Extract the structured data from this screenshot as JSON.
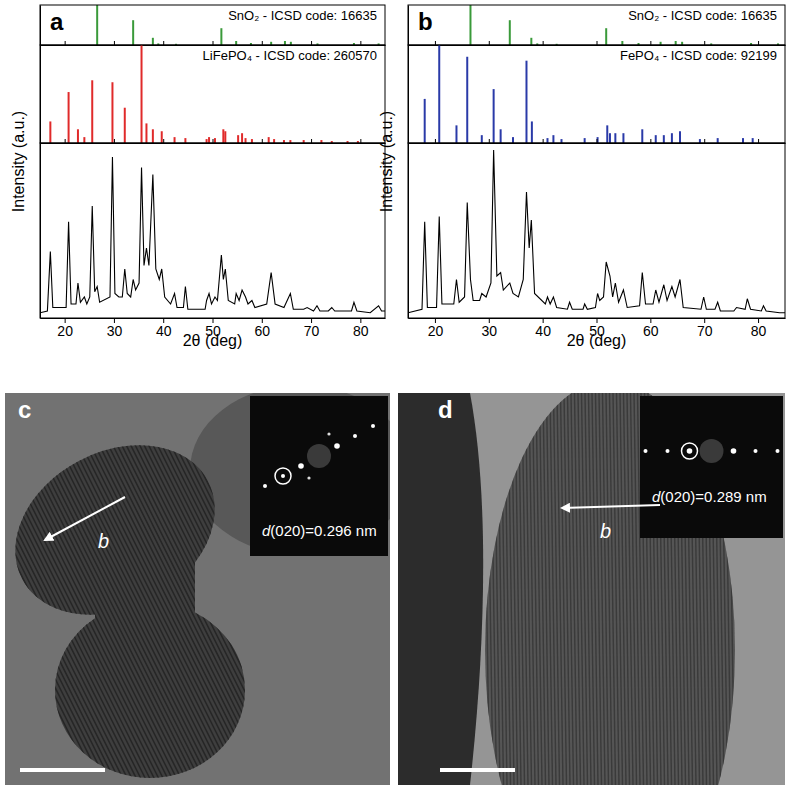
{
  "chart_data": [
    {
      "type": "stem",
      "panel": "a",
      "title": "SnO₂ - ICSD code: 16635",
      "color": "#3a9a3a",
      "x": [
        26.6,
        33.9,
        37.9,
        39.0,
        42.6,
        51.8,
        54.8,
        57.8,
        61.9,
        64.7,
        65.9,
        71.3,
        78.7,
        83.7
      ],
      "values": [
        100,
        62,
        18,
        4,
        3,
        42,
        10,
        5,
        8,
        10,
        8,
        4,
        5,
        4
      ],
      "xlim": [
        15,
        85
      ],
      "ylim": [
        0,
        100
      ],
      "xticks": [
        20,
        30,
        40,
        50,
        60,
        70,
        80
      ],
      "yticks": [],
      "tick_labels": false
    },
    {
      "type": "stem",
      "title": "LiFePO₄ - ICSD code: 260570",
      "color": "#e02a2a",
      "x": [
        17.1,
        20.8,
        22.7,
        24.0,
        25.6,
        29.7,
        32.2,
        35.6,
        36.6,
        37.9,
        39.7,
        42.3,
        44.5,
        48.8,
        49.3,
        50.5,
        52.2,
        52.6,
        55.2,
        56.0,
        56.7,
        58.0,
        61.4,
        62.5,
        64.5,
        65.8,
        68.5,
        72.1,
        74.2,
        77.4,
        79.5
      ],
      "values": [
        22,
        52,
        14,
        6,
        64,
        62,
        36,
        100,
        20,
        14,
        12,
        6,
        5,
        4,
        6,
        5,
        14,
        12,
        8,
        10,
        5,
        4,
        6,
        4,
        3,
        3,
        3,
        3,
        2,
        2,
        2
      ],
      "xlim": [
        15,
        85
      ],
      "ylim": [
        0,
        100
      ],
      "xticks": [
        20,
        30,
        40,
        50,
        60,
        70,
        80
      ],
      "yticks": [],
      "tick_labels": false
    },
    {
      "type": "line",
      "x_label": "2θ (deg)",
      "y_label": "Intensity (a.u.)",
      "color": "#000000",
      "x": [
        15,
        16.5,
        17.1,
        17.6,
        20.3,
        20.8,
        21.3,
        22.3,
        22.7,
        23.2,
        24.0,
        24.5,
        25.1,
        25.6,
        26.1,
        26.6,
        27.1,
        29.2,
        29.7,
        30.2,
        31.0,
        31.7,
        32.2,
        32.7,
        33.4,
        33.9,
        34.4,
        35.1,
        35.6,
        36.1,
        36.6,
        37.1,
        37.9,
        38.5,
        39.2,
        39.7,
        40.3,
        41.5,
        42.3,
        42.8,
        44.1,
        44.5,
        45.0,
        48.5,
        48.8,
        49.3,
        49.8,
        50.5,
        51.0,
        51.8,
        52.2,
        52.6,
        53.2,
        54.5,
        54.8,
        55.4,
        56.0,
        56.7,
        57.2,
        58.0,
        58.6,
        61.0,
        61.9,
        62.7,
        64.5,
        65.8,
        66.4,
        68.5,
        69.2,
        70.5,
        71.2,
        71.8,
        73.5,
        74.2,
        74.8,
        78.2,
        78.7,
        79.3,
        82.0,
        83.7,
        84.3,
        85
      ],
      "values": [
        3,
        4,
        38,
        6,
        6,
        55,
        8,
        8,
        20,
        9,
        12,
        8,
        12,
        64,
        15,
        18,
        9,
        12,
        92,
        14,
        12,
        12,
        28,
        14,
        12,
        22,
        16,
        20,
        86,
        30,
        40,
        30,
        82,
        28,
        22,
        28,
        12,
        8,
        14,
        6,
        6,
        18,
        5,
        5,
        10,
        14,
        8,
        12,
        10,
        36,
        22,
        28,
        10,
        8,
        14,
        10,
        16,
        12,
        8,
        10,
        6,
        8,
        26,
        8,
        6,
        14,
        5,
        5,
        6,
        4,
        7,
        4,
        4,
        6,
        4,
        4,
        9,
        4,
        3,
        7,
        4,
        4
      ],
      "xlim": [
        15,
        85
      ],
      "ylim": [
        0,
        100
      ],
      "xticks": [
        20,
        30,
        40,
        50,
        60,
        70,
        80
      ],
      "yticks": [],
      "tick_labels": "x"
    },
    {
      "type": "stem",
      "panel": "b",
      "title": "SnO₂ - ICSD code: 16635",
      "color": "#3a9a3a",
      "x": [
        26.6,
        33.9,
        37.9,
        39.0,
        42.6,
        51.8,
        54.8,
        57.8,
        61.9,
        64.7,
        65.9,
        71.3,
        78.7,
        83.7
      ],
      "values": [
        100,
        62,
        18,
        4,
        3,
        42,
        10,
        5,
        8,
        10,
        8,
        4,
        5,
        4
      ],
      "xlim": [
        15,
        85
      ],
      "ylim": [
        0,
        100
      ],
      "xticks": [
        20,
        30,
        40,
        50,
        60,
        70,
        80
      ],
      "yticks": [],
      "tick_labels": false
    },
    {
      "type": "stem",
      "title": "FePO₄ - ICSD code: 92199",
      "color": "#2a3aa8",
      "x": [
        18.1,
        20.8,
        24.0,
        26.0,
        28.7,
        30.9,
        32.2,
        34.5,
        37.0,
        38.0,
        40.9,
        42.0,
        43.5,
        47.8,
        50.2,
        52.0,
        52.5,
        53.5,
        55.0,
        58.5,
        61.0,
        62.5,
        64.0,
        65.5,
        69.2,
        72.5,
        77.2,
        79.0
      ],
      "values": [
        45,
        100,
        18,
        88,
        8,
        55,
        14,
        6,
        84,
        22,
        5,
        8,
        4,
        5,
        6,
        18,
        10,
        10,
        10,
        14,
        8,
        8,
        10,
        12,
        4,
        5,
        5,
        5
      ],
      "xlim": [
        15,
        85
      ],
      "ylim": [
        0,
        100
      ],
      "xticks": [
        20,
        30,
        40,
        50,
        60,
        70,
        80
      ],
      "yticks": [],
      "tick_labels": false
    },
    {
      "type": "line",
      "x_label": "2θ (deg)",
      "y_label": "Intensity (a.u.)",
      "color": "#000000",
      "x": [
        15,
        17.6,
        18.1,
        18.6,
        20.3,
        20.8,
        21.3,
        23.5,
        24.0,
        24.5,
        25.5,
        26.0,
        26.6,
        27.1,
        28.3,
        28.7,
        29.5,
        30.4,
        30.9,
        31.5,
        32.2,
        32.7,
        33.9,
        34.5,
        35.5,
        36.4,
        37.0,
        37.5,
        37.9,
        38.5,
        40.5,
        40.9,
        41.4,
        42.0,
        42.6,
        44.6,
        45.0,
        45.5,
        47.5,
        47.8,
        48.3,
        49.8,
        50.2,
        50.6,
        51.3,
        51.8,
        52.5,
        53.0,
        53.5,
        54.1,
        55.0,
        55.7,
        58.0,
        58.5,
        59.1,
        60.5,
        61.0,
        61.6,
        62.5,
        63.1,
        64.0,
        64.6,
        65.5,
        66.1,
        69.4,
        69.9,
        70.4,
        72.0,
        72.5,
        73.0,
        75.5,
        76.0,
        77.6,
        78.0,
        78.6,
        80.6,
        81.0,
        81.5,
        84.0,
        85
      ],
      "values": [
        3,
        5,
        55,
        6,
        6,
        58,
        8,
        8,
        22,
        9,
        12,
        66,
        22,
        10,
        10,
        14,
        12,
        20,
        96,
        24,
        26,
        16,
        20,
        14,
        12,
        22,
        72,
        40,
        56,
        14,
        8,
        12,
        8,
        12,
        6,
        5,
        9,
        5,
        5,
        8,
        5,
        6,
        14,
        10,
        12,
        32,
        24,
        12,
        20,
        9,
        16,
        6,
        7,
        26,
        8,
        8,
        16,
        9,
        19,
        10,
        18,
        12,
        22,
        6,
        5,
        12,
        5,
        5,
        9,
        4,
        4,
        6,
        5,
        11,
        5,
        4,
        7,
        4,
        3,
        3
      ],
      "xlim": [
        15,
        85
      ],
      "ylim": [
        0,
        100
      ],
      "xticks": [
        20,
        30,
        40,
        50,
        60,
        70,
        80
      ],
      "yticks": [],
      "tick_labels": "x"
    }
  ],
  "images": [
    {
      "panel": "c",
      "axis_label": "b",
      "inset_label": "d(020)=0.296 nm"
    },
    {
      "panel": "d",
      "axis_label": "b",
      "inset_label": "d(020)=0.289 nm"
    }
  ]
}
